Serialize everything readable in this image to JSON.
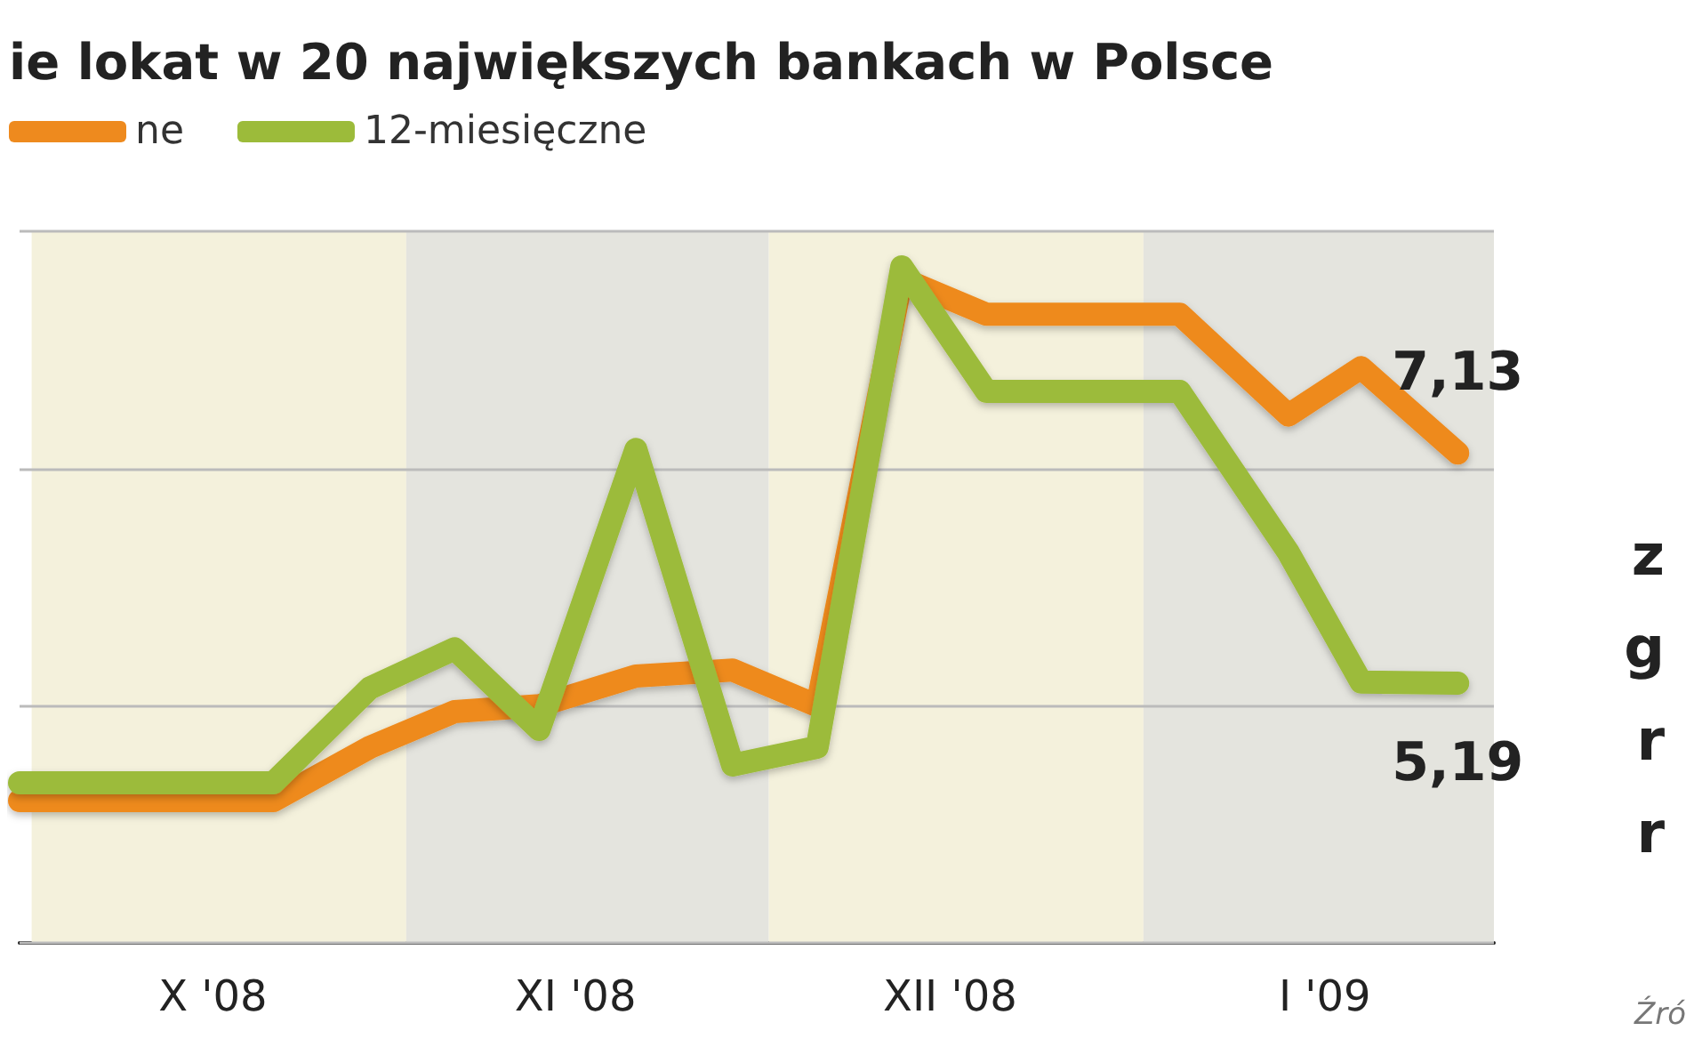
{
  "chart_data": {
    "type": "line",
    "title": "ie lokat w 20 największych bankach w Polsce",
    "x": [
      "2008-09-30",
      "2008-10-21",
      "2008-10-29",
      "2008-11-05",
      "2008-11-12",
      "2008-11-20",
      "2008-11-28",
      "2008-12-05",
      "2008-12-12",
      "2008-12-19",
      "2009-01-04",
      "2009-01-13",
      "2009-01-19",
      "2009-01-27"
    ],
    "series": [
      {
        "name": "ne",
        "color": "#ee8a1e",
        "values": [
          4.2,
          4.2,
          4.65,
          4.95,
          5.0,
          5.25,
          5.3,
          5.0,
          8.6,
          8.3,
          8.3,
          7.45,
          7.85,
          7.13
        ],
        "value_labels": [
          null,
          null,
          null,
          null,
          null,
          null,
          null,
          null,
          null,
          null,
          null,
          null,
          null,
          "7,13"
        ]
      },
      {
        "name": "12-miesięczne",
        "color": "#9cbb3a",
        "values": [
          4.35,
          4.35,
          5.15,
          5.48,
          4.8,
          7.16,
          4.5,
          4.65,
          8.7,
          7.65,
          7.65,
          6.29,
          5.2,
          5.19
        ],
        "value_labels": [
          null,
          null,
          null,
          null,
          null,
          null,
          null,
          null,
          null,
          null,
          null,
          null,
          null,
          "5,19"
        ]
      }
    ],
    "xlim": [
      "2008-09-30",
      "2009-01-30"
    ],
    "xticks": [
      {
        "value": "2008-10-16",
        "label": "X '08"
      },
      {
        "value": "2008-11-15",
        "label": "XI '08"
      },
      {
        "value": "2008-12-16",
        "label": "XII '08"
      },
      {
        "value": "2009-01-16",
        "label": "I '09"
      }
    ],
    "ylim": [
      3,
      9
    ],
    "yticks": [
      {
        "value": 3,
        "label": null
      },
      {
        "value": 5,
        "label": null
      },
      {
        "value": 7,
        "label": null
      },
      {
        "value": 9,
        "label": null
      }
    ],
    "bands": [
      {
        "axis": "x",
        "from": "2008-10-01",
        "to": "2008-11-01",
        "color": "#f4f1dc"
      },
      {
        "axis": "x",
        "from": "2008-11-01",
        "to": "2008-12-01",
        "color": "#e4e4de"
      },
      {
        "axis": "x",
        "from": "2008-12-01",
        "to": "2009-01-01",
        "color": "#f4f1dc"
      },
      {
        "axis": "x",
        "from": "2009-01-01",
        "to": "2009-01-30",
        "color": "#e4e4de"
      }
    ],
    "annotations": [
      "z",
      "g",
      "r",
      "r",
      "Źró"
    ],
    "grid": "y",
    "legend": "top left",
    "marker": "none",
    "line_style": "solid"
  }
}
